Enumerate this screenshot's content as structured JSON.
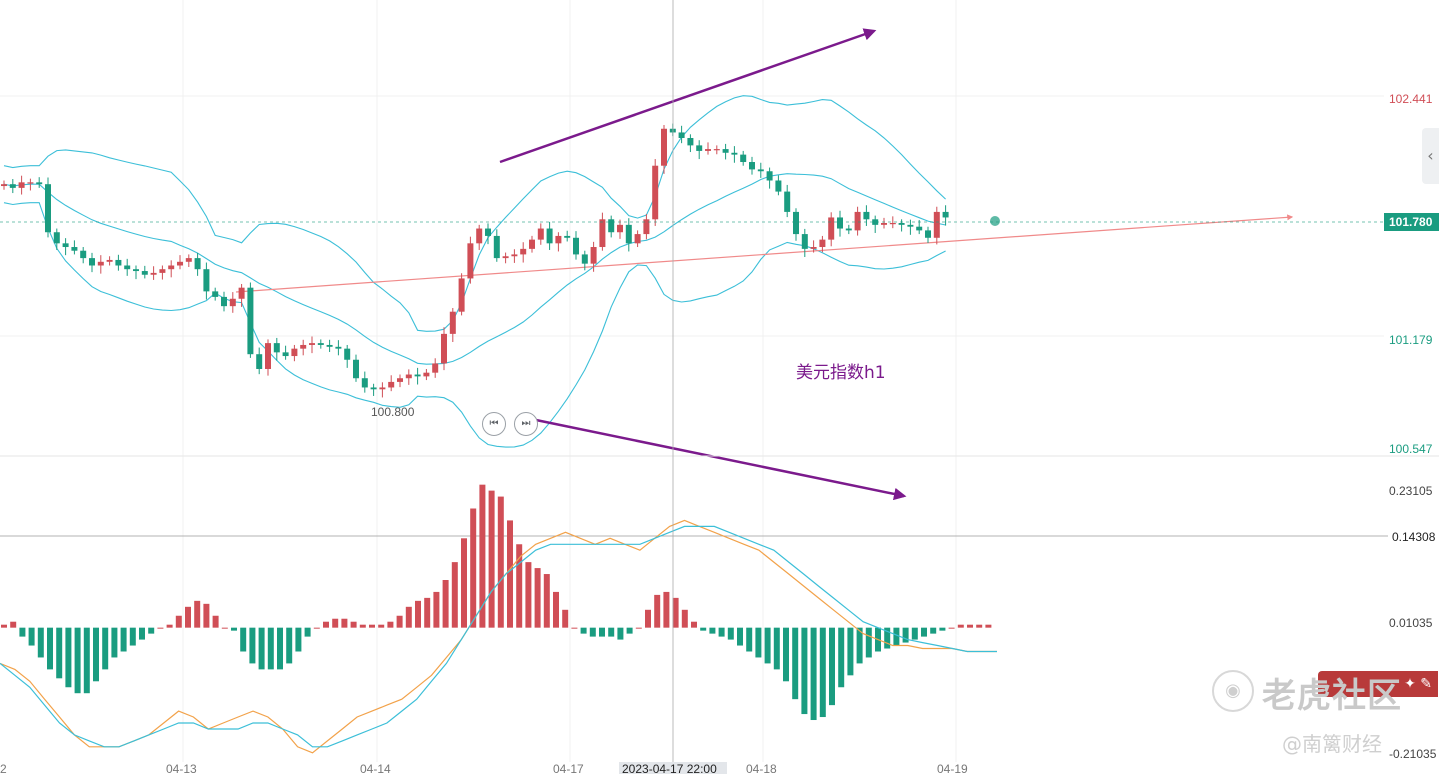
{
  "chart_data": [
    {
      "type": "candlestick",
      "title": "",
      "annotation": "美元指数h1",
      "y_ticks": [
        "102.441",
        "101.179",
        "100.547"
      ],
      "y_range": [
        100.547,
        102.441
      ],
      "current_price": "101.780",
      "low_label": "100.800",
      "x_ticks": [
        "2",
        "04-13",
        "04-14",
        "04-17",
        "04-18",
        "04-19"
      ],
      "crosshair_label": "2023-04-17 22:00",
      "colors": {
        "up": "#d04e56",
        "down": "#1a9c80",
        "band": "#3cbfd8",
        "trend": "#f08a8a",
        "arrow": "#7b1a8c"
      },
      "close": [
        101.98,
        101.96,
        101.99,
        101.99,
        101.98,
        101.72,
        101.66,
        101.64,
        101.62,
        101.58,
        101.54,
        101.56,
        101.57,
        101.54,
        101.52,
        101.51,
        101.49,
        101.5,
        101.52,
        101.54,
        101.56,
        101.58,
        101.52,
        101.4,
        101.37,
        101.32,
        101.36,
        101.42,
        101.06,
        100.98,
        101.12,
        101.07,
        101.05,
        101.09,
        101.11,
        101.12,
        101.11,
        101.1,
        101.09,
        101.03,
        100.93,
        100.88,
        100.87,
        100.88,
        100.91,
        100.93,
        100.95,
        100.94,
        100.96,
        101.01,
        101.17,
        101.29,
        101.47,
        101.66,
        101.74,
        101.7,
        101.58,
        101.59,
        101.6,
        101.63,
        101.68,
        101.74,
        101.66,
        101.7,
        101.69,
        101.6,
        101.55,
        101.64,
        101.79,
        101.72,
        101.76,
        101.66,
        101.71,
        101.79,
        102.08,
        102.28,
        102.26,
        102.23,
        102.19,
        102.16,
        102.17,
        102.17,
        102.15,
        102.14,
        102.1,
        102.06,
        102.05,
        102.0,
        101.94,
        101.83,
        101.71,
        101.63,
        101.64,
        101.68,
        101.8,
        101.74,
        101.73,
        101.83,
        101.79,
        101.76,
        101.77,
        101.77,
        101.76,
        101.75,
        101.73,
        101.69,
        101.83,
        101.8
      ]
    },
    {
      "type": "macd",
      "y_ticks": [
        "0.23105",
        "0.14308",
        "0.01035",
        "-0.21035"
      ],
      "y_range": [
        -0.21035,
        0.23105
      ],
      "reference_level": 0.14308,
      "histogram": [
        0.005,
        0.01,
        -0.015,
        -0.03,
        -0.05,
        -0.07,
        -0.085,
        -0.1,
        -0.11,
        -0.11,
        -0.09,
        -0.07,
        -0.05,
        -0.04,
        -0.03,
        -0.02,
        -0.01,
        0.0,
        0.005,
        0.02,
        0.035,
        0.045,
        0.04,
        0.02,
        0.0,
        -0.005,
        -0.04,
        -0.06,
        -0.07,
        -0.07,
        -0.07,
        -0.06,
        -0.04,
        -0.015,
        0.0,
        0.01,
        0.015,
        0.015,
        0.01,
        0.005,
        0.005,
        0.005,
        0.01,
        0.02,
        0.035,
        0.045,
        0.05,
        0.06,
        0.08,
        0.11,
        0.15,
        0.2,
        0.24,
        0.23,
        0.22,
        0.18,
        0.14,
        0.11,
        0.1,
        0.09,
        0.06,
        0.03,
        0.0,
        -0.01,
        -0.015,
        -0.015,
        -0.015,
        -0.02,
        -0.01,
        0.0,
        0.03,
        0.055,
        0.06,
        0.05,
        0.03,
        0.01,
        -0.005,
        -0.01,
        -0.015,
        -0.02,
        -0.03,
        -0.04,
        -0.05,
        -0.06,
        -0.07,
        -0.09,
        -0.12,
        -0.145,
        -0.155,
        -0.15,
        -0.13,
        -0.1,
        -0.08,
        -0.06,
        -0.05,
        -0.04,
        -0.035,
        -0.03,
        -0.025,
        -0.02,
        -0.015,
        -0.01,
        -0.005,
        0.0,
        0.005,
        0.005,
        0.005,
        0.005
      ],
      "dif": [
        -0.06,
        -0.07,
        -0.09,
        -0.12,
        -0.15,
        -0.18,
        -0.2,
        -0.2,
        -0.2,
        -0.19,
        -0.18,
        -0.16,
        -0.14,
        -0.15,
        -0.17,
        -0.16,
        -0.15,
        -0.14,
        -0.15,
        -0.17,
        -0.2,
        -0.21,
        -0.19,
        -0.17,
        -0.15,
        -0.14,
        -0.13,
        -0.12,
        -0.1,
        -0.08,
        -0.05,
        -0.02,
        0.02,
        0.06,
        0.09,
        0.12,
        0.14,
        0.15,
        0.16,
        0.15,
        0.14,
        0.15,
        0.14,
        0.13,
        0.15,
        0.17,
        0.18,
        0.17,
        0.16,
        0.15,
        0.14,
        0.13,
        0.11,
        0.09,
        0.07,
        0.05,
        0.03,
        0.01,
        -0.01,
        -0.02,
        -0.03,
        -0.03,
        -0.035,
        -0.035,
        -0.035,
        -0.04,
        -0.04,
        -0.04
      ],
      "dea": [
        -0.06,
        -0.08,
        -0.1,
        -0.13,
        -0.16,
        -0.18,
        -0.19,
        -0.2,
        -0.2,
        -0.19,
        -0.18,
        -0.17,
        -0.16,
        -0.16,
        -0.17,
        -0.17,
        -0.17,
        -0.16,
        -0.16,
        -0.17,
        -0.18,
        -0.2,
        -0.2,
        -0.19,
        -0.18,
        -0.17,
        -0.16,
        -0.14,
        -0.12,
        -0.09,
        -0.06,
        -0.02,
        0.02,
        0.06,
        0.09,
        0.11,
        0.13,
        0.14,
        0.14,
        0.14,
        0.14,
        0.14,
        0.14,
        0.14,
        0.15,
        0.16,
        0.17,
        0.17,
        0.17,
        0.16,
        0.15,
        0.14,
        0.13,
        0.11,
        0.09,
        0.07,
        0.05,
        0.03,
        0.01,
        0.0,
        -0.01,
        -0.02,
        -0.025,
        -0.03,
        -0.035,
        -0.04,
        -0.04,
        -0.04
      ]
    }
  ],
  "watermark": {
    "text": "老虎社区",
    "handle": "@南篱财经",
    "logo_icon": "tiger-logo-icon",
    "badge_icon": "tiger-badge-icon"
  },
  "controls": {
    "prev_icon": "skip-previous-icon",
    "next_icon": "skip-next-icon",
    "collapse_icon": "chevron-left-icon"
  }
}
